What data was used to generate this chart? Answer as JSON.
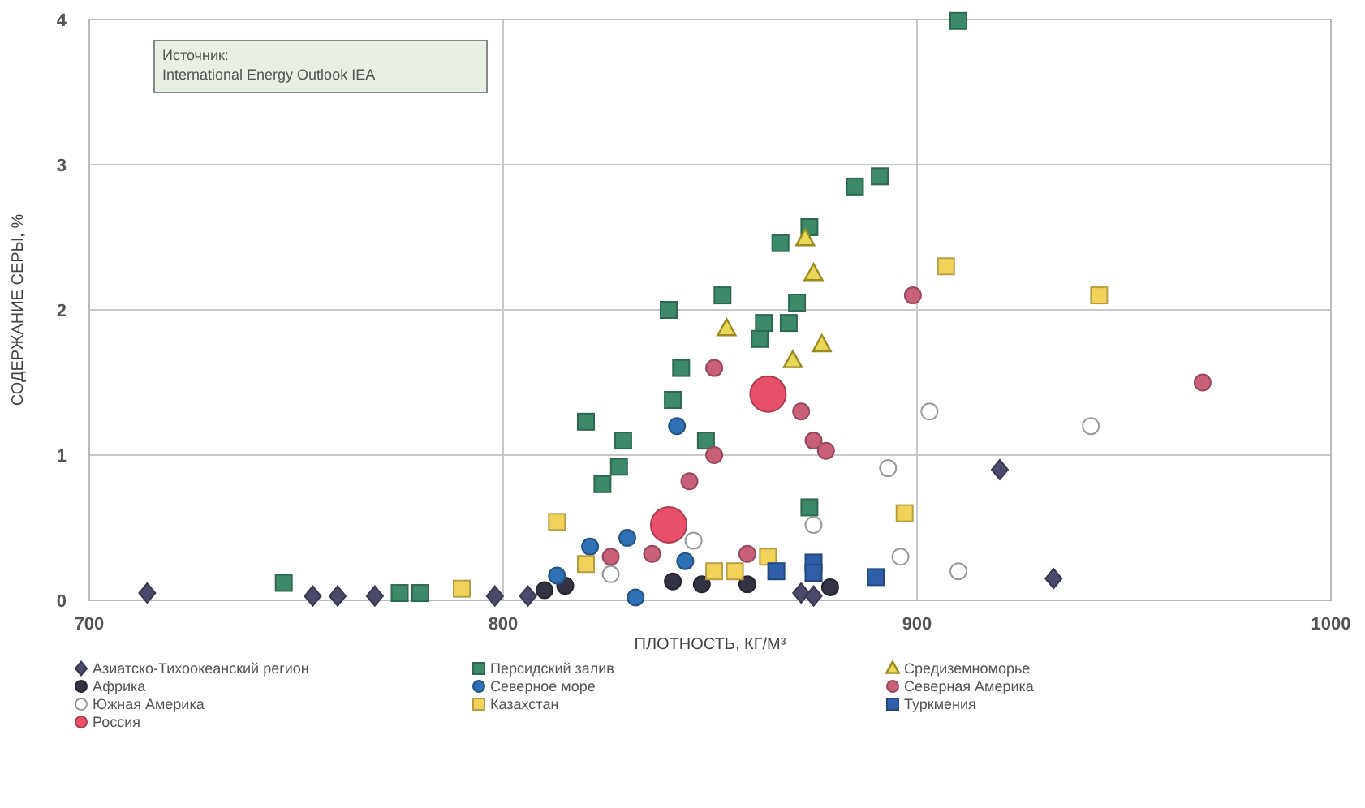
{
  "chart_data": {
    "type": "scatter",
    "xlabel": "ПЛОТНОСТЬ, КГ/М³",
    "ylabel": "СОДЕРЖАНИЕ СЕРЫ, %",
    "annotations": [
      "Источник:\nInternational Energy Outlook IEA"
    ],
    "xlim": [
      700,
      1000
    ],
    "xticks": [
      700,
      800,
      900,
      1000
    ],
    "ylim": [
      0,
      4
    ],
    "yticks": [
      0,
      1,
      2,
      3,
      4
    ],
    "grid": true,
    "legend": "bottom",
    "series": [
      {
        "name": "Азиатско-Тихоокеанский регион",
        "color": "#4b4a6b",
        "marker": "diamond",
        "x": [
          714,
          754,
          760,
          769,
          798,
          806,
          872,
          875,
          920,
          933
        ],
        "values": [
          0.05,
          0.03,
          0.03,
          0.03,
          0.03,
          0.03,
          0.05,
          0.03,
          0.9,
          0.15
        ]
      },
      {
        "name": "Персидский залив",
        "color": "#3d8a6b",
        "marker": "square",
        "x": [
          747,
          775,
          780,
          820,
          824,
          828,
          829,
          840,
          841,
          843,
          849,
          853,
          862,
          863,
          867,
          869,
          871,
          874,
          874,
          885,
          891,
          910
        ],
        "values": [
          0.12,
          0.05,
          0.05,
          1.23,
          0.8,
          0.92,
          1.1,
          2.0,
          1.38,
          1.6,
          1.1,
          2.1,
          1.8,
          1.91,
          2.46,
          1.91,
          2.05,
          2.57,
          0.64,
          2.85,
          2.92,
          3.99
        ]
      },
      {
        "name": "Средиземноморье",
        "color": "#e8d85a",
        "marker": "triangle",
        "x": [
          873,
          875,
          854,
          870,
          877
        ],
        "values": [
          2.49,
          2.25,
          1.87,
          1.65,
          1.76
        ]
      },
      {
        "name": "Африка",
        "color": "#333344",
        "marker": "circle",
        "x": [
          810,
          815,
          841,
          848,
          859,
          879
        ],
        "values": [
          0.07,
          0.1,
          0.13,
          0.11,
          0.11,
          0.09
        ]
      },
      {
        "name": "Северное море",
        "color": "#2f6fb3",
        "marker": "circle",
        "x": [
          830,
          842,
          844,
          832,
          813,
          821
        ],
        "values": [
          0.43,
          1.2,
          0.27,
          0.02,
          0.17,
          0.37
        ]
      },
      {
        "name": "Северная Америка",
        "color": "#c9607a",
        "marker": "circle",
        "x": [
          899,
          969,
          851,
          872,
          875,
          878,
          851,
          845,
          859,
          836,
          826
        ],
        "values": [
          2.1,
          1.5,
          1.6,
          1.3,
          1.1,
          1.03,
          1.0,
          0.82,
          0.32,
          0.32,
          0.3
        ]
      },
      {
        "name": "Южная Америка",
        "color": "#ffffff",
        "marker": "circle",
        "x": [
          903,
          942,
          893,
          875,
          896,
          910,
          846,
          826
        ],
        "values": [
          1.3,
          1.2,
          0.91,
          0.52,
          0.3,
          0.2,
          0.41,
          0.18
        ]
      },
      {
        "name": "Казахстан",
        "color": "#f2d25a",
        "marker": "square",
        "x": [
          907,
          944,
          897,
          813,
          820,
          790,
          851,
          856,
          864
        ],
        "values": [
          2.3,
          2.1,
          0.6,
          0.54,
          0.25,
          0.08,
          0.2,
          0.2,
          0.3
        ]
      },
      {
        "name": "Туркмения",
        "color": "#2e5fa8",
        "marker": "square",
        "x": [
          890,
          875,
          866,
          875
        ],
        "values": [
          0.16,
          0.26,
          0.2,
          0.19
        ]
      },
      {
        "name": "Россия",
        "color": "#e8506a",
        "marker": "circle",
        "x": [
          864,
          840
        ],
        "values": [
          1.42,
          0.52
        ]
      }
    ]
  }
}
